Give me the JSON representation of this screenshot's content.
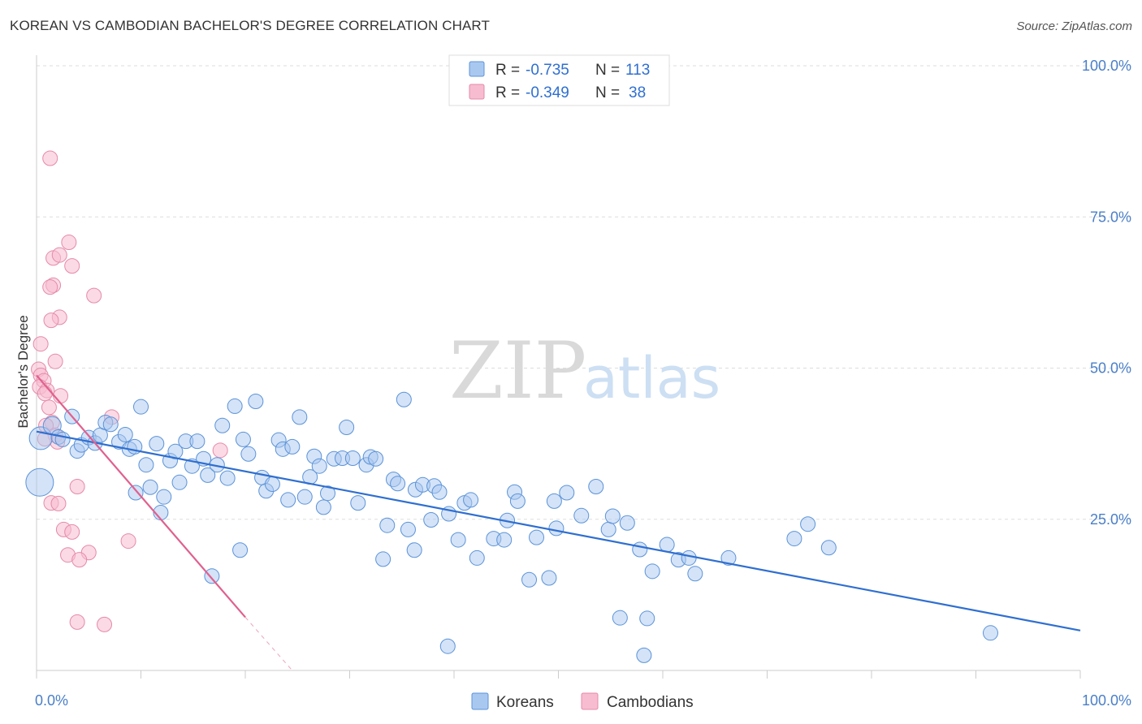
{
  "title": "KOREAN VS CAMBODIAN BACHELOR'S DEGREE CORRELATION CHART",
  "source": "Source: ZipAtlas.com",
  "watermark": {
    "zip": "ZIP",
    "atlas": "atlas"
  },
  "colors": {
    "korean_fill": "#a9c8f0",
    "korean_stroke": "#5b93d9",
    "korean_line": "#2f6fd0",
    "cambodian_fill": "#f7bcd0",
    "cambodian_stroke": "#e58aa8",
    "cambodian_line": "#e0608e",
    "grid": "#dddddd",
    "axis_text": "#4a7fc8"
  },
  "legend": {
    "r_label": "R =",
    "n_label": "N =",
    "korean": {
      "r": "-0.735",
      "n": "113"
    },
    "cambodian": {
      "r": "-0.349",
      "n": "38"
    }
  },
  "chart_data": {
    "type": "scatter",
    "ylabel": "Bachelor's Degree",
    "xlim": [
      0,
      100
    ],
    "ylim": [
      0,
      100
    ],
    "x_tick_labels": [
      "0.0%",
      "100.0%"
    ],
    "y_tick_labels": [
      "25.0%",
      "50.0%",
      "75.0%",
      "100.0%"
    ],
    "y_ticks": [
      25,
      50,
      75,
      100
    ],
    "legend_position": "top-center",
    "series": [
      {
        "name": "Koreans",
        "trend": {
          "x0": 0,
          "y0": 39.5,
          "x1": 100,
          "y1": 6.6
        },
        "points": [
          [
            0.4,
            38.4,
            3
          ],
          [
            0.3,
            31.1,
            4
          ],
          [
            1.5,
            40.5,
            2
          ],
          [
            2.1,
            38.6,
            1
          ],
          [
            2.5,
            38.2,
            1
          ],
          [
            3.4,
            42.0,
            1
          ],
          [
            3.9,
            36.3,
            1
          ],
          [
            4.3,
            37.3,
            1
          ],
          [
            5.0,
            38.5,
            1
          ],
          [
            5.6,
            37.6,
            1
          ],
          [
            6.1,
            38.9,
            1
          ],
          [
            6.6,
            41.0,
            1
          ],
          [
            7.1,
            40.7,
            1
          ],
          [
            7.9,
            37.8,
            1
          ],
          [
            8.5,
            39.0,
            1
          ],
          [
            8.9,
            36.6,
            1
          ],
          [
            9.4,
            37.0,
            1
          ],
          [
            9.5,
            29.4,
            1
          ],
          [
            10.0,
            43.6,
            1
          ],
          [
            10.5,
            34.0,
            1
          ],
          [
            10.9,
            30.3,
            1
          ],
          [
            11.5,
            37.5,
            1
          ],
          [
            11.9,
            26.1,
            1
          ],
          [
            12.2,
            28.7,
            1
          ],
          [
            12.8,
            34.7,
            1
          ],
          [
            13.3,
            36.2,
            1
          ],
          [
            13.7,
            31.1,
            1
          ],
          [
            14.3,
            37.9,
            1
          ],
          [
            14.9,
            33.8,
            1
          ],
          [
            15.4,
            37.9,
            1
          ],
          [
            16.0,
            35.0,
            1
          ],
          [
            16.4,
            32.3,
            1
          ],
          [
            16.8,
            15.6,
            1
          ],
          [
            17.3,
            34.0,
            1
          ],
          [
            17.8,
            40.5,
            1
          ],
          [
            18.3,
            31.8,
            1
          ],
          [
            19.0,
            43.7,
            1
          ],
          [
            19.5,
            19.9,
            1
          ],
          [
            19.8,
            38.2,
            1
          ],
          [
            20.3,
            35.8,
            1
          ],
          [
            21.0,
            44.5,
            1
          ],
          [
            21.6,
            31.9,
            1
          ],
          [
            22.0,
            29.7,
            1
          ],
          [
            22.6,
            30.8,
            1
          ],
          [
            23.2,
            38.1,
            1
          ],
          [
            23.6,
            36.6,
            1
          ],
          [
            24.1,
            28.2,
            1
          ],
          [
            24.5,
            37.0,
            1
          ],
          [
            25.2,
            41.9,
            1
          ],
          [
            25.7,
            28.7,
            1
          ],
          [
            26.2,
            32.0,
            1
          ],
          [
            26.6,
            35.4,
            1
          ],
          [
            27.1,
            33.8,
            1
          ],
          [
            27.5,
            27.0,
            1
          ],
          [
            27.9,
            29.3,
            1
          ],
          [
            28.5,
            35.0,
            1
          ],
          [
            29.3,
            35.1,
            1
          ],
          [
            29.7,
            40.2,
            1
          ],
          [
            30.3,
            35.1,
            1
          ],
          [
            30.8,
            27.7,
            1
          ],
          [
            31.6,
            34.0,
            1
          ],
          [
            32.0,
            35.3,
            1
          ],
          [
            32.5,
            35.0,
            1
          ],
          [
            33.2,
            18.4,
            1
          ],
          [
            33.6,
            24.0,
            1
          ],
          [
            34.2,
            31.6,
            1
          ],
          [
            34.6,
            30.9,
            1
          ],
          [
            35.2,
            44.8,
            1
          ],
          [
            35.6,
            23.3,
            1
          ],
          [
            36.2,
            19.9,
            1
          ],
          [
            36.3,
            29.9,
            1
          ],
          [
            37.0,
            30.7,
            1
          ],
          [
            37.8,
            24.9,
            1
          ],
          [
            38.1,
            30.5,
            1
          ],
          [
            38.6,
            29.5,
            1
          ],
          [
            39.4,
            4.0,
            1
          ],
          [
            39.5,
            25.9,
            1
          ],
          [
            40.4,
            21.6,
            1
          ],
          [
            41.0,
            27.7,
            1
          ],
          [
            41.6,
            28.2,
            1
          ],
          [
            42.2,
            18.6,
            1
          ],
          [
            43.8,
            21.8,
            1
          ],
          [
            44.8,
            21.6,
            1
          ],
          [
            45.1,
            24.8,
            1
          ],
          [
            45.8,
            29.5,
            1
          ],
          [
            46.1,
            28.0,
            1
          ],
          [
            47.2,
            15.0,
            1
          ],
          [
            47.9,
            22.0,
            1
          ],
          [
            49.1,
            15.3,
            1
          ],
          [
            49.6,
            28.0,
            1
          ],
          [
            49.8,
            23.5,
            1
          ],
          [
            50.8,
            29.4,
            1
          ],
          [
            52.2,
            25.6,
            1
          ],
          [
            53.6,
            30.4,
            1
          ],
          [
            54.8,
            23.3,
            1
          ],
          [
            55.2,
            25.5,
            1
          ],
          [
            55.9,
            8.7,
            1
          ],
          [
            56.6,
            24.4,
            1
          ],
          [
            57.8,
            20.0,
            1
          ],
          [
            58.2,
            2.5,
            1
          ],
          [
            58.5,
            8.6,
            1
          ],
          [
            59.0,
            16.4,
            1
          ],
          [
            60.4,
            20.8,
            1
          ],
          [
            61.5,
            18.3,
            1
          ],
          [
            62.5,
            18.6,
            1
          ],
          [
            63.1,
            16.0,
            1
          ],
          [
            66.3,
            18.6,
            1
          ],
          [
            72.6,
            21.8,
            1
          ],
          [
            73.9,
            24.2,
            1
          ],
          [
            75.9,
            20.3,
            1
          ],
          [
            91.4,
            6.2,
            1
          ]
        ]
      },
      {
        "name": "Cambodians",
        "trend": {
          "x0": 0,
          "y0": 48.8,
          "x1": 20,
          "y1": 8.8
        },
        "trend_dashed": {
          "x0": 20,
          "y0": 8.8,
          "x1": 24.5,
          "y1": 0
        },
        "points": [
          [
            1.3,
            84.7,
            1
          ],
          [
            3.1,
            70.8,
            1
          ],
          [
            1.6,
            68.2,
            1
          ],
          [
            2.2,
            68.7,
            1
          ],
          [
            3.4,
            66.9,
            1
          ],
          [
            1.6,
            63.7,
            1
          ],
          [
            1.3,
            63.4,
            1
          ],
          [
            5.5,
            62.0,
            1
          ],
          [
            2.2,
            58.4,
            1
          ],
          [
            1.4,
            57.9,
            1
          ],
          [
            0.4,
            54.0,
            1
          ],
          [
            1.8,
            51.1,
            1
          ],
          [
            0.2,
            49.8,
            1
          ],
          [
            0.4,
            48.8,
            1
          ],
          [
            0.7,
            47.9,
            1
          ],
          [
            0.3,
            46.9,
            1
          ],
          [
            1.0,
            46.3,
            1
          ],
          [
            0.8,
            45.8,
            1
          ],
          [
            2.3,
            45.4,
            1
          ],
          [
            1.2,
            43.5,
            1
          ],
          [
            7.2,
            41.9,
            1
          ],
          [
            1.5,
            41.0,
            1
          ],
          [
            0.9,
            40.5,
            1
          ],
          [
            1.8,
            38.9,
            1
          ],
          [
            2.0,
            37.8,
            1
          ],
          [
            0.8,
            38.3,
            1
          ],
          [
            17.6,
            36.4,
            1
          ],
          [
            3.9,
            30.4,
            1
          ],
          [
            1.4,
            27.7,
            1
          ],
          [
            2.1,
            27.6,
            1
          ],
          [
            2.6,
            23.3,
            1
          ],
          [
            3.4,
            22.9,
            1
          ],
          [
            8.8,
            21.4,
            1
          ],
          [
            3.0,
            19.1,
            1
          ],
          [
            5.0,
            19.5,
            1
          ],
          [
            4.1,
            18.3,
            1
          ],
          [
            3.9,
            8.0,
            1
          ],
          [
            6.5,
            7.6,
            1
          ]
        ]
      }
    ]
  }
}
